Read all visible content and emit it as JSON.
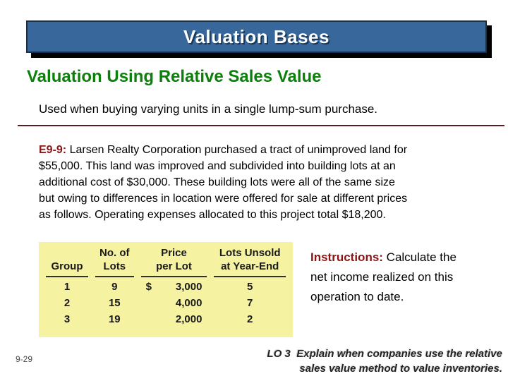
{
  "title_bar": {
    "text": "Valuation Bases"
  },
  "heading": {
    "text": "Valuation Using Relative Sales Value"
  },
  "subheading": {
    "text": "Used when buying varying units in a single lump-sum purchase."
  },
  "problem": {
    "label": "E9-9:",
    "line1_rest": " Larsen Realty Corporation purchased a tract of unimproved land for",
    "lines": [
      "$55,000. This land was improved and subdivided into building lots at an",
      "additional cost of $30,000. These building lots were all of the same size",
      "but owing to differences in location were offered for sale at different prices",
      "as follows. Operating expenses allocated to this project total $18,200."
    ]
  },
  "table": {
    "headers": [
      {
        "line1": "",
        "line2": "Group"
      },
      {
        "line1": "No. of",
        "line2": "Lots"
      },
      {
        "line1": "Price",
        "line2": "per Lot"
      },
      {
        "line1": "Lots Unsold",
        "line2": "at Year-End"
      }
    ],
    "rows": [
      {
        "group": "1",
        "lots": "9",
        "currency": "$",
        "price": "3,000",
        "unsold": "5"
      },
      {
        "group": "2",
        "lots": "15",
        "currency": "",
        "price": "4,000",
        "unsold": "7"
      },
      {
        "group": "3",
        "lots": "19",
        "currency": "",
        "price": "2,000",
        "unsold": "2"
      }
    ]
  },
  "instructions": {
    "label": "Instructions:",
    "line1_rest": " Calculate the",
    "line2": "net income realized on this",
    "line3": "operation to date."
  },
  "footer": {
    "page": "9-29",
    "lo_line1": "LO 3  Explain when companies use the relative",
    "lo_line2": "sales value method to value inventories."
  },
  "colors": {
    "title_bar_bg": "#38689B",
    "title_bar_border": "#14304F",
    "title_bar_shadow": "#000000",
    "heading_green": "#0B800B",
    "accent_maroon": "#8B1414",
    "divider_maroon": "#5A1E1E",
    "table_bg": "#F5F2A2"
  }
}
